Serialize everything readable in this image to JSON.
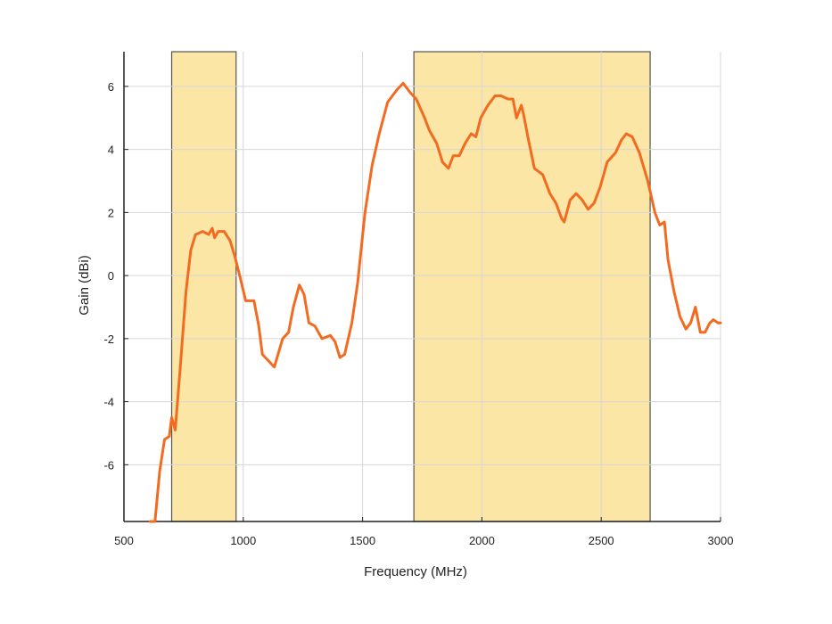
{
  "chart_data": {
    "type": "line",
    "xlabel": "Frequency (MHz)",
    "ylabel": "Gain (dBi)",
    "xlim": [
      500,
      3000
    ],
    "ylim": [
      -7.8,
      7.1
    ],
    "x_ticks": [
      500,
      1000,
      1500,
      2000,
      2500,
      3000
    ],
    "y_ticks": [
      6,
      4,
      2,
      0,
      -2,
      -4,
      -6
    ],
    "grid": true,
    "highlight_bands": [
      {
        "x_start": 700,
        "x_end": 970,
        "color": "#fbe6a6"
      },
      {
        "x_start": 1715,
        "x_end": 2705,
        "color": "#fbe6a6"
      }
    ],
    "series": [
      {
        "color": "#f26b21",
        "points": [
          [
            610,
            -7.8
          ],
          [
            630,
            -7.8
          ],
          [
            650,
            -6.2
          ],
          [
            670,
            -5.2
          ],
          [
            690,
            -5.1
          ],
          [
            700,
            -4.5
          ],
          [
            715,
            -4.9
          ],
          [
            735,
            -3.0
          ],
          [
            760,
            -0.5
          ],
          [
            780,
            0.8
          ],
          [
            800,
            1.3
          ],
          [
            830,
            1.4
          ],
          [
            855,
            1.3
          ],
          [
            870,
            1.5
          ],
          [
            880,
            1.2
          ],
          [
            895,
            1.4
          ],
          [
            920,
            1.4
          ],
          [
            945,
            1.1
          ],
          [
            965,
            0.6
          ],
          [
            985,
            0.0
          ],
          [
            1010,
            -0.8
          ],
          [
            1045,
            -0.8
          ],
          [
            1065,
            -1.6
          ],
          [
            1080,
            -2.5
          ],
          [
            1105,
            -2.7
          ],
          [
            1130,
            -2.9
          ],
          [
            1165,
            -2.0
          ],
          [
            1190,
            -1.8
          ],
          [
            1210,
            -1.0
          ],
          [
            1235,
            -0.3
          ],
          [
            1255,
            -0.6
          ],
          [
            1275,
            -1.5
          ],
          [
            1300,
            -1.6
          ],
          [
            1330,
            -2.0
          ],
          [
            1365,
            -1.9
          ],
          [
            1385,
            -2.1
          ],
          [
            1405,
            -2.6
          ],
          [
            1425,
            -2.5
          ],
          [
            1455,
            -1.5
          ],
          [
            1480,
            -0.2
          ],
          [
            1510,
            2.0
          ],
          [
            1540,
            3.5
          ],
          [
            1570,
            4.5
          ],
          [
            1605,
            5.5
          ],
          [
            1645,
            5.9
          ],
          [
            1670,
            6.1
          ],
          [
            1700,
            5.8
          ],
          [
            1725,
            5.6
          ],
          [
            1760,
            5.0
          ],
          [
            1780,
            4.6
          ],
          [
            1810,
            4.2
          ],
          [
            1835,
            3.6
          ],
          [
            1860,
            3.4
          ],
          [
            1880,
            3.8
          ],
          [
            1905,
            3.8
          ],
          [
            1930,
            4.2
          ],
          [
            1955,
            4.5
          ],
          [
            1975,
            4.4
          ],
          [
            1995,
            5.0
          ],
          [
            2025,
            5.4
          ],
          [
            2055,
            5.7
          ],
          [
            2080,
            5.7
          ],
          [
            2110,
            5.6
          ],
          [
            2130,
            5.6
          ],
          [
            2145,
            5.0
          ],
          [
            2165,
            5.4
          ],
          [
            2175,
            5.1
          ],
          [
            2195,
            4.3
          ],
          [
            2220,
            3.4
          ],
          [
            2255,
            3.2
          ],
          [
            2285,
            2.6
          ],
          [
            2310,
            2.3
          ],
          [
            2335,
            1.8
          ],
          [
            2345,
            1.7
          ],
          [
            2370,
            2.4
          ],
          [
            2395,
            2.6
          ],
          [
            2420,
            2.4
          ],
          [
            2445,
            2.1
          ],
          [
            2470,
            2.3
          ],
          [
            2495,
            2.8
          ],
          [
            2525,
            3.6
          ],
          [
            2560,
            3.9
          ],
          [
            2585,
            4.3
          ],
          [
            2605,
            4.5
          ],
          [
            2630,
            4.4
          ],
          [
            2660,
            3.9
          ],
          [
            2695,
            3.0
          ],
          [
            2725,
            2.0
          ],
          [
            2745,
            1.6
          ],
          [
            2765,
            1.7
          ],
          [
            2780,
            0.5
          ],
          [
            2805,
            -0.5
          ],
          [
            2830,
            -1.3
          ],
          [
            2855,
            -1.7
          ],
          [
            2875,
            -1.5
          ],
          [
            2895,
            -1.0
          ],
          [
            2915,
            -1.8
          ],
          [
            2935,
            -1.8
          ],
          [
            2955,
            -1.5
          ],
          [
            2970,
            -1.4
          ],
          [
            2990,
            -1.5
          ],
          [
            3000,
            -1.5
          ]
        ]
      }
    ]
  }
}
